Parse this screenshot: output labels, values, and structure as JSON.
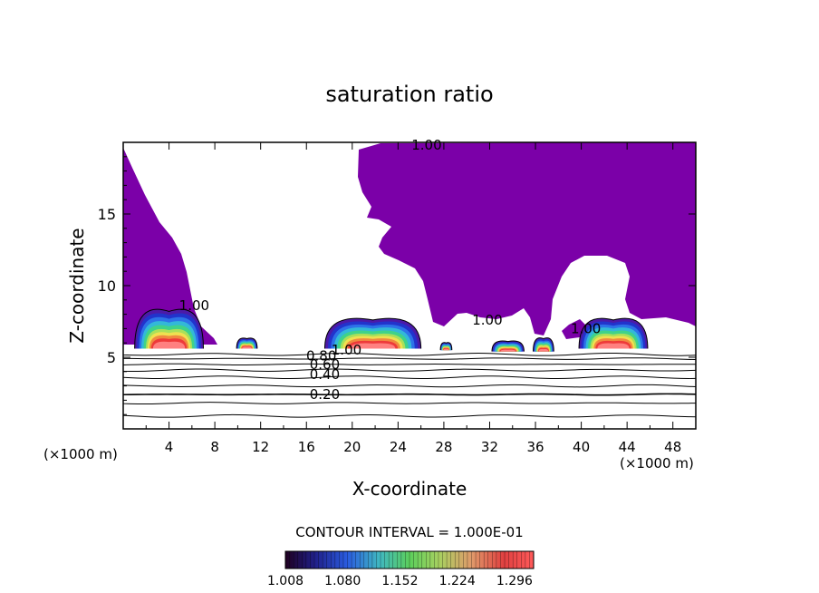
{
  "chart_data": {
    "type": "contour",
    "title": "saturation ratio",
    "xlabel": "X-coordinate",
    "ylabel": "Z-coordinate",
    "x_unit": "(×1000 m)",
    "x_unit_right": "(×1000 m)",
    "xlim": [
      0,
      50
    ],
    "ylim": [
      0,
      20
    ],
    "xticks": [
      4,
      8,
      12,
      16,
      20,
      24,
      28,
      32,
      36,
      40,
      44,
      48
    ],
    "yticks": [
      5,
      10,
      15
    ],
    "contour_interval_text": "CONTOUR INTERVAL = 1.000E-01",
    "colorbar_ticks": [
      "1.008",
      "1.080",
      "1.152",
      "1.224",
      "1.296"
    ],
    "colorbar_range": [
      1.008,
      1.32
    ],
    "contour_labels": [
      {
        "text": "1.00",
        "x": 26.5,
        "z": 19.8
      },
      {
        "text": "1.00",
        "x": 6.2,
        "z": 8.6
      },
      {
        "text": "1.00",
        "x": 31.8,
        "z": 7.6
      },
      {
        "text": "1.00",
        "x": 40.4,
        "z": 7.0
      },
      {
        "text": "1.00",
        "x": 19.5,
        "z": 5.5
      },
      {
        "text": "0.80",
        "x": 17.3,
        "z": 5.1
      },
      {
        "text": "0.60",
        "x": 17.6,
        "z": 4.5
      },
      {
        "text": "0.40",
        "x": 17.6,
        "z": 3.8
      },
      {
        "text": "0.20",
        "x": 17.6,
        "z": 2.4
      }
    ],
    "subsaturated_isolines_z": [
      0.9,
      1.8,
      2.4,
      3.0,
      3.6,
      4.1,
      4.5,
      4.9,
      5.2
    ],
    "supersaturated_cells": [
      {
        "xc": 4.0,
        "z0": 5.6,
        "half_width": 3.0,
        "height": 2.6
      },
      {
        "xc": 10.8,
        "z0": 5.6,
        "half_width": 0.9,
        "height": 0.7
      },
      {
        "xc": 21.8,
        "z0": 5.6,
        "half_width": 4.2,
        "height": 2.0
      },
      {
        "xc": 28.2,
        "z0": 5.5,
        "half_width": 0.5,
        "height": 0.5
      },
      {
        "xc": 33.6,
        "z0": 5.4,
        "half_width": 1.4,
        "height": 0.7
      },
      {
        "xc": 36.7,
        "z0": 5.4,
        "half_width": 0.9,
        "height": 0.9
      },
      {
        "xc": 42.8,
        "z0": 5.6,
        "half_width": 3.0,
        "height": 2.0
      }
    ]
  }
}
